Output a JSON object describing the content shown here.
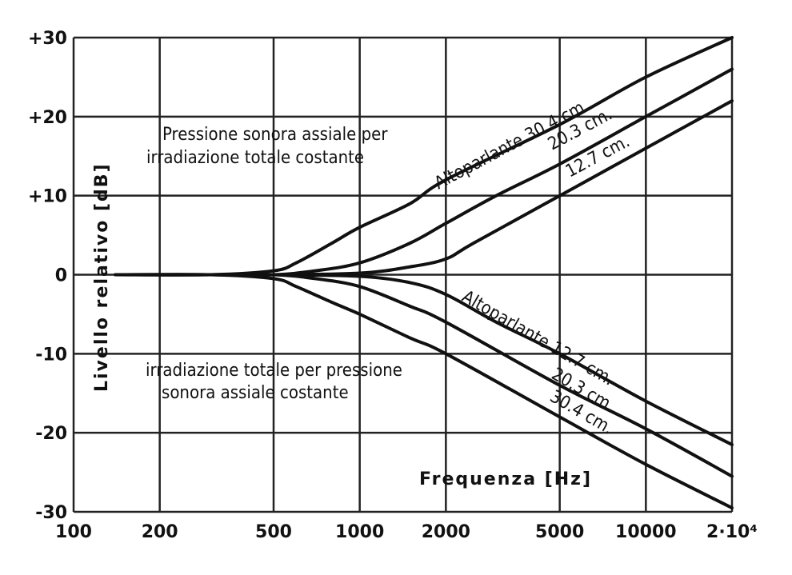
{
  "chart_data": {
    "type": "line",
    "xscale": "log",
    "xlim": [
      100,
      20000
    ],
    "ylim": [
      -30,
      30
    ],
    "grid": true,
    "xlabel": "Frequenza [Hz]",
    "ylabel": "Livello relativo [dB]",
    "x_tick_labels": [
      "100",
      "200",
      "500",
      "1000",
      "2000",
      "5000",
      "10000",
      "2·10⁴"
    ],
    "x_tick_values": [
      100,
      200,
      500,
      1000,
      2000,
      5000,
      10000,
      20000
    ],
    "y_tick_labels": [
      "+30",
      "+20",
      "+10",
      "0",
      "-10",
      "-20",
      "-30"
    ],
    "y_tick_values": [
      30,
      20,
      10,
      0,
      -10,
      -20,
      -30
    ],
    "annotations": {
      "upper_title_line1": "Pressione sonora assiale per",
      "upper_title_line2": "irradiazione totale costante",
      "lower_title_line1": "irradiazione totale per pressione",
      "lower_title_line2": "sonora assiale costante",
      "upper_series_label_1": "Altoparlante 30.4 cm.",
      "upper_series_label_2": "20.3 cm.",
      "upper_series_label_3": "12.7 cm.",
      "lower_series_label_1": "Altoparlante 12.7 cm.",
      "lower_series_label_2": "20.3 cm.",
      "lower_series_label_3": "30.4 cm."
    },
    "series": [
      {
        "name": "Altoparlante 30.4 cm.",
        "group": "upper",
        "x": [
          140,
          300,
          500,
          600,
          800,
          1000,
          1500,
          2000,
          5000,
          10000,
          20000
        ],
        "y": [
          0,
          0,
          0.5,
          1.5,
          4,
          6,
          9,
          12,
          19,
          25,
          30
        ]
      },
      {
        "name": "20.3 cm.",
        "group": "upper",
        "x": [
          140,
          300,
          500,
          700,
          1000,
          1500,
          2000,
          3000,
          5000,
          10000,
          20000
        ],
        "y": [
          0,
          0,
          0,
          0.5,
          1.5,
          4,
          6.5,
          10,
          14,
          20,
          26
        ]
      },
      {
        "name": "12.7 cm.",
        "group": "upper",
        "x": [
          140,
          300,
          500,
          1000,
          1500,
          2000,
          2500,
          5000,
          10000,
          20000
        ],
        "y": [
          0,
          0,
          0,
          0.2,
          1,
          2,
          4,
          10,
          16,
          22
        ]
      },
      {
        "name": "Altoparlante 12.7 cm.",
        "group": "lower",
        "x": [
          140,
          300,
          500,
          1000,
          1500,
          2000,
          3000,
          5000,
          10000,
          20000
        ],
        "y": [
          0,
          0,
          0,
          -0.2,
          -1,
          -2.5,
          -6,
          -10,
          -16,
          -21.5
        ]
      },
      {
        "name": "20.3 cm.",
        "group": "lower",
        "x": [
          140,
          300,
          500,
          700,
          1000,
          1500,
          2000,
          5000,
          10000,
          20000
        ],
        "y": [
          0,
          0,
          0,
          -0.5,
          -1.5,
          -4,
          -6,
          -14,
          -19.5,
          -25.5
        ]
      },
      {
        "name": "30.4 cm.",
        "group": "lower",
        "x": [
          140,
          300,
          500,
          600,
          800,
          1000,
          1500,
          2000,
          5000,
          10000,
          20000
        ],
        "y": [
          0,
          0,
          -0.5,
          -1.5,
          -3.5,
          -5,
          -8,
          -10,
          -18,
          -24,
          -29.5
        ]
      }
    ]
  }
}
